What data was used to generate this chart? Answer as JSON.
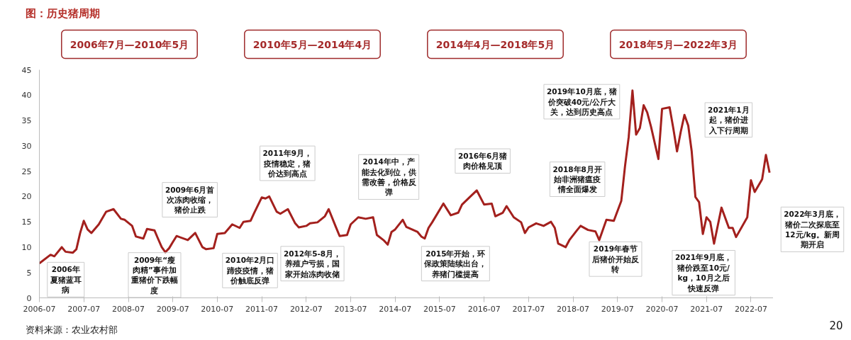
{
  "chart_data": {
    "type": "line",
    "title": "图：历史猪周期",
    "x": [
      "2006-07",
      "2006-10",
      "2006-11",
      "2007-01",
      "2007-02",
      "2007-04",
      "2007-05",
      "2007-06",
      "2007-07",
      "2007-08",
      "2007-09",
      "2007-11",
      "2008-01",
      "2008-03",
      "2008-05",
      "2008-06",
      "2008-08",
      "2008-09",
      "2008-11",
      "2008-12",
      "2009-02",
      "2009-03",
      "2009-04",
      "2009-05",
      "2009-06",
      "2009-07",
      "2009-08",
      "2009-11",
      "2010-01",
      "2010-03",
      "2010-04",
      "2010-06",
      "2010-07",
      "2010-09",
      "2010-11",
      "2011-01",
      "2011-02",
      "2011-04",
      "2011-05",
      "2011-07",
      "2011-08",
      "2011-09",
      "2011-11",
      "2011-12",
      "2012-02",
      "2012-04",
      "2012-05",
      "2012-07",
      "2012-08",
      "2012-10",
      "2012-12",
      "2013-01",
      "2013-03",
      "2013-04",
      "2013-06",
      "2013-07",
      "2013-09",
      "2013-11",
      "2014-01",
      "2014-02",
      "2014-04",
      "2014-05",
      "2014-06",
      "2014-07",
      "2014-09",
      "2014-10",
      "2015-01",
      "2015-02",
      "2015-03",
      "2015-04",
      "2015-05",
      "2015-08",
      "2015-10",
      "2015-12",
      "2016-01",
      "2016-03",
      "2016-05",
      "2016-07",
      "2016-09",
      "2016-10",
      "2016-12",
      "2017-01",
      "2017-03",
      "2017-05",
      "2017-06",
      "2017-07",
      "2017-09",
      "2017-11",
      "2018-01",
      "2018-02",
      "2018-03",
      "2018-05",
      "2018-06",
      "2018-08",
      "2018-09",
      "2018-11",
      "2019-01",
      "2019-02",
      "2019-04",
      "2019-06",
      "2019-08",
      "2019-09",
      "2019-10",
      "2019-11",
      "2019-12",
      "2020-01",
      "2020-02",
      "2020-03",
      "2020-04",
      "2020-06",
      "2020-07",
      "2020-09",
      "2020-10",
      "2020-11",
      "2020-12",
      "2021-01",
      "2021-02",
      "2021-03",
      "2021-04",
      "2021-05",
      "2021-06",
      "2021-07",
      "2021-08",
      "2021-09",
      "2021-11",
      "2022-01",
      "2022-02",
      "2022-03",
      "2022-06",
      "2022-07",
      "2022-08",
      "2022-10",
      "2022-11",
      "2022-12"
    ],
    "series": [
      {
        "color": "#a3201d",
        "values": [
          6.8,
          8.5,
          8.2,
          10.0,
          9.1,
          8.9,
          9.6,
          12.8,
          15.2,
          13.5,
          12.8,
          14.5,
          17.0,
          17.5,
          15.6,
          15.4,
          14.2,
          12.1,
          11.7,
          13.6,
          13.3,
          11.7,
          10.0,
          9.0,
          9.8,
          11.0,
          12.2,
          11.4,
          12.8,
          10.0,
          9.6,
          9.8,
          12.6,
          12.8,
          14.5,
          13.8,
          15.0,
          15.2,
          16.8,
          19.8,
          19.6,
          20.0,
          17.0,
          16.6,
          17.5,
          14.7,
          13.9,
          14.2,
          14.7,
          14.9,
          16.1,
          17.5,
          14.0,
          12.2,
          12.4,
          14.5,
          15.9,
          15.6,
          15.9,
          12.4,
          11.3,
          10.5,
          13.0,
          13.5,
          15.4,
          14.0,
          13.0,
          12.1,
          11.7,
          13.8,
          14.9,
          18.6,
          16.3,
          16.8,
          18.4,
          19.8,
          21.2,
          18.4,
          18.6,
          16.1,
          16.8,
          18.1,
          15.9,
          14.9,
          12.8,
          13.9,
          14.7,
          14.2,
          15.0,
          13.8,
          10.7,
          10.0,
          11.4,
          13.3,
          14.2,
          13.4,
          13.1,
          11.4,
          15.4,
          15.2,
          19.1,
          26.0,
          31.7,
          40.9,
          32.2,
          33.5,
          38.0,
          36.6,
          33.8,
          27.4,
          37.3,
          37.6,
          33.5,
          28.9,
          32.7,
          36.1,
          34.0,
          29.0,
          19.9,
          18.9,
          12.6,
          15.9,
          15.0,
          10.7,
          17.8,
          13.8,
          13.8,
          12.0,
          15.9,
          23.2,
          20.9,
          23.4,
          28.2,
          24.7
        ]
      }
    ],
    "xlim": [
      "2006-07",
      "2023-01"
    ],
    "xticks": [
      "2006-07",
      "2007-07",
      "2008-07",
      "2009-07",
      "2010-07",
      "2011-07",
      "2012-07",
      "2013-07",
      "2014-07",
      "2015-07",
      "2016-07",
      "2017-07",
      "2018-07",
      "2019-07",
      "2020-07",
      "2021-07",
      "2022-07"
    ],
    "ylim": [
      0,
      45
    ],
    "yticks": [
      0,
      5,
      10,
      15,
      20,
      25,
      30,
      35,
      40,
      45
    ],
    "annotations": [
      "2006年7月—2010年5月",
      "2010年5月—2014年4月",
      "2014年4月—2018年5月",
      "2018年5月—2022年3月",
      "2006年夏猪蓝耳病",
      "2009年“瘦肉精”事件加重猪价下跌幅度",
      "2009年6月首次冻肉收缩，猪价止跌",
      "2010年2月口蹄疫疫情，猪价触底反弹",
      "2011年9月，疫情稳定，猪价达到高点",
      "2012年5-8月，养殖户亏损，国家开始冻肉收储",
      "2014年中，产能去化到位，供需改善，价格反弹",
      "2015年开始，环保政策陆续出台，养猪门槛提高",
      "2016年6月猪肉价格见顶",
      "2018年8月开始非洲猪瘟疫情全面爆发",
      "2019年春节后猪价开始反转",
      "2019年10月底，猪价突破40元/公斤大关，达到历史高点",
      "2021年1月起，猪价进入下行周期",
      "2021年9月底，猪价跌至10元/kg，10月之后快速反弹",
      "2022年3月底，猪价二次探底至12元/kg。新周期开启",
      "资料来源：农业农村部",
      "20"
    ],
    "grid": false
  }
}
